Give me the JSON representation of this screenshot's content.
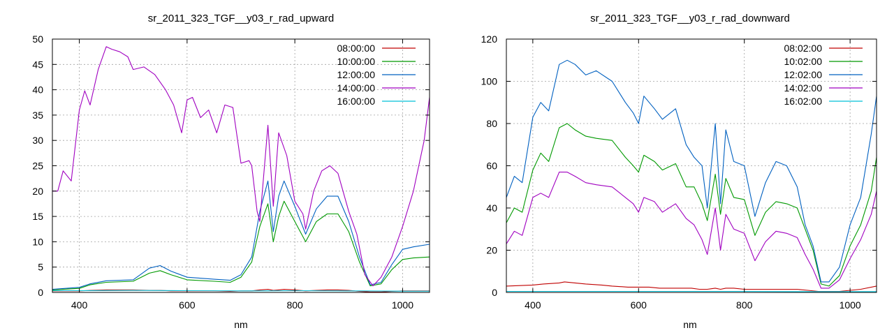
{
  "chart_data": [
    {
      "type": "line",
      "title": "sr_2011_323_TGF__y03_r_rad_upward",
      "xlabel": "nm",
      "ylabel": "",
      "xlim": [
        350,
        1050
      ],
      "ylim": [
        0,
        50
      ],
      "xticks": [
        400,
        600,
        800,
        1000
      ],
      "yticks": [
        0,
        5,
        10,
        15,
        20,
        25,
        30,
        35,
        40,
        45,
        50
      ],
      "grid": true,
      "legend_position": "top-right",
      "series": [
        {
          "name": "08:00:00",
          "color": "#c00000",
          "x": [
            350,
            400,
            420,
            450,
            500,
            530,
            550,
            570,
            600,
            650,
            680,
            700,
            720,
            735,
            750,
            760,
            770,
            780,
            800,
            820,
            840,
            860,
            880,
            900,
            920,
            940,
            960,
            980,
            1000,
            1020,
            1050
          ],
          "y": [
            0.3,
            0.3,
            0.4,
            0.5,
            0.5,
            0.4,
            0.4,
            0.3,
            0.3,
            0.3,
            0.2,
            0.3,
            0.3,
            0.5,
            0.6,
            0.4,
            0.5,
            0.6,
            0.5,
            0.3,
            0.4,
            0.5,
            0.5,
            0.4,
            0.2,
            0.1,
            0.1,
            0.2,
            0.3,
            0.3,
            0.3
          ]
        },
        {
          "name": "10:00:00",
          "color": "#009900",
          "x": [
            350,
            400,
            420,
            450,
            500,
            530,
            550,
            570,
            600,
            650,
            680,
            700,
            720,
            735,
            750,
            760,
            770,
            780,
            800,
            820,
            840,
            860,
            880,
            900,
            920,
            940,
            960,
            980,
            1000,
            1020,
            1050
          ],
          "y": [
            0.5,
            0.8,
            1.5,
            2,
            2.2,
            3.8,
            4.3,
            3.5,
            2.5,
            2.2,
            2,
            3,
            6,
            13,
            17.5,
            10,
            15,
            18,
            14,
            10,
            14,
            15.5,
            15.5,
            12,
            6,
            1.3,
            1.7,
            4.5,
            6.5,
            6.8,
            7
          ]
        },
        {
          "name": "12:00:00",
          "color": "#0060c0",
          "x": [
            350,
            400,
            420,
            450,
            500,
            530,
            550,
            570,
            600,
            650,
            680,
            700,
            720,
            735,
            750,
            760,
            770,
            780,
            800,
            820,
            840,
            860,
            880,
            900,
            920,
            940,
            960,
            980,
            1000,
            1020,
            1050
          ],
          "y": [
            0.6,
            1,
            1.7,
            2.3,
            2.5,
            4.8,
            5.3,
            4.2,
            3,
            2.6,
            2.4,
            3.5,
            7,
            16,
            22,
            12,
            19,
            22,
            17,
            11.5,
            16.5,
            19,
            19,
            14,
            7,
            1.5,
            2,
            5.5,
            8.5,
            9,
            9.5
          ]
        },
        {
          "name": "14:00:00",
          "color": "#a000c0",
          "x": [
            350,
            360,
            370,
            385,
            400,
            410,
            420,
            435,
            450,
            460,
            475,
            490,
            500,
            520,
            540,
            560,
            575,
            590,
            600,
            610,
            625,
            640,
            655,
            670,
            685,
            700,
            715,
            720,
            730,
            735,
            750,
            760,
            770,
            785,
            800,
            815,
            820,
            835,
            850,
            865,
            880,
            900,
            915,
            930,
            945,
            960,
            980,
            1000,
            1020,
            1040,
            1050
          ],
          "y": [
            20,
            20,
            24,
            22,
            36,
            39.8,
            37,
            44,
            48.5,
            48,
            47.5,
            46.5,
            44,
            44.5,
            43,
            40,
            37,
            31.5,
            38,
            38.5,
            34.5,
            36,
            31.5,
            37,
            36.5,
            25.5,
            26,
            25,
            16,
            14,
            33,
            17,
            31.5,
            27,
            18,
            15.5,
            12.5,
            20,
            24,
            25,
            23.5,
            16,
            11.5,
            3.5,
            1.3,
            3,
            7,
            13,
            20,
            30,
            38.5
          ]
        },
        {
          "name": "16:00:00",
          "color": "#00c0d8",
          "x": [
            350,
            400,
            500,
            600,
            700,
            800,
            900,
            1000,
            1050
          ],
          "y": [
            0.35,
            0.35,
            0.4,
            0.35,
            0.3,
            0.35,
            0.3,
            0.25,
            0.25
          ]
        }
      ]
    },
    {
      "type": "line",
      "title": "sr_2011_323_TGF__y03_r_rad_downward",
      "xlabel": "nm",
      "ylabel": "",
      "xlim": [
        350,
        1050
      ],
      "ylim": [
        0,
        120
      ],
      "xticks": [
        400,
        600,
        800,
        1000
      ],
      "yticks": [
        0,
        20,
        40,
        60,
        80,
        100,
        120
      ],
      "grid": true,
      "legend_position": "top-right",
      "series": [
        {
          "name": "08:02:00",
          "color": "#c00000",
          "x": [
            350,
            400,
            420,
            450,
            460,
            480,
            500,
            530,
            550,
            580,
            600,
            620,
            640,
            660,
            680,
            700,
            715,
            730,
            745,
            755,
            765,
            780,
            800,
            820,
            850,
            870,
            900,
            920,
            940,
            960,
            980,
            1000,
            1020,
            1050
          ],
          "y": [
            3,
            3.5,
            4,
            4.5,
            5,
            4.5,
            4,
            3.5,
            3,
            2.5,
            2.5,
            2.5,
            2,
            2,
            2,
            2,
            1.5,
            1.5,
            2,
            1.5,
            2,
            2,
            1.5,
            1.5,
            1.5,
            1.5,
            1.5,
            1,
            0.5,
            0.5,
            0.5,
            1,
            1.5,
            3
          ]
        },
        {
          "name": "10:02:00",
          "color": "#009900",
          "x": [
            350,
            365,
            380,
            400,
            415,
            430,
            450,
            465,
            480,
            500,
            520,
            550,
            575,
            590,
            600,
            610,
            630,
            645,
            670,
            690,
            705,
            720,
            730,
            745,
            755,
            765,
            780,
            800,
            820,
            840,
            860,
            880,
            900,
            915,
            930,
            945,
            960,
            980,
            1000,
            1020,
            1040,
            1050
          ],
          "y": [
            33,
            40,
            38,
            58,
            66,
            62,
            78,
            80,
            77,
            74,
            73,
            72,
            64,
            60,
            57,
            65,
            62,
            58,
            61,
            50,
            50,
            42,
            34,
            56,
            37,
            54,
            45,
            44,
            27,
            38,
            43,
            42,
            40,
            30,
            20,
            4,
            3,
            8,
            22,
            32,
            48,
            64
          ]
        },
        {
          "name": "12:02:00",
          "color": "#0060c0",
          "x": [
            350,
            365,
            380,
            400,
            415,
            430,
            450,
            465,
            480,
            500,
            520,
            550,
            575,
            590,
            600,
            610,
            630,
            645,
            670,
            690,
            705,
            720,
            730,
            745,
            755,
            765,
            780,
            800,
            820,
            840,
            860,
            880,
            900,
            915,
            930,
            945,
            960,
            980,
            1000,
            1020,
            1040,
            1050
          ],
          "y": [
            45,
            55,
            52,
            83,
            90,
            86,
            108,
            110,
            108,
            103,
            105,
            100,
            90,
            85,
            80,
            93,
            87,
            82,
            87,
            70,
            64,
            60,
            40,
            80,
            42,
            77,
            62,
            60,
            36,
            52,
            62,
            60,
            50,
            32,
            22,
            5,
            5,
            12,
            32,
            45,
            75,
            93
          ]
        },
        {
          "name": "14:02:00",
          "color": "#a000c0",
          "x": [
            350,
            365,
            380,
            400,
            415,
            430,
            450,
            465,
            480,
            500,
            520,
            550,
            575,
            590,
            600,
            610,
            630,
            645,
            670,
            690,
            705,
            720,
            730,
            745,
            755,
            765,
            780,
            800,
            820,
            840,
            860,
            880,
            900,
            915,
            930,
            945,
            960,
            980,
            1000,
            1020,
            1040,
            1050
          ],
          "y": [
            23,
            29,
            27,
            45,
            47,
            45,
            57,
            57,
            55,
            52,
            51,
            50,
            45,
            42,
            38,
            45,
            43,
            38,
            42,
            35,
            32,
            25,
            18,
            40,
            20,
            37,
            30,
            28,
            15,
            24,
            29,
            28,
            26,
            18,
            11,
            2,
            2,
            6,
            16,
            25,
            37,
            48
          ]
        },
        {
          "name": "16:02:00",
          "color": "#00c0d8",
          "x": [
            350,
            400,
            500,
            600,
            700,
            800,
            900,
            1000,
            1050
          ],
          "y": [
            0.5,
            0.5,
            0.5,
            0.5,
            0.5,
            0.5,
            0.4,
            0.4,
            0.4
          ]
        }
      ]
    }
  ]
}
